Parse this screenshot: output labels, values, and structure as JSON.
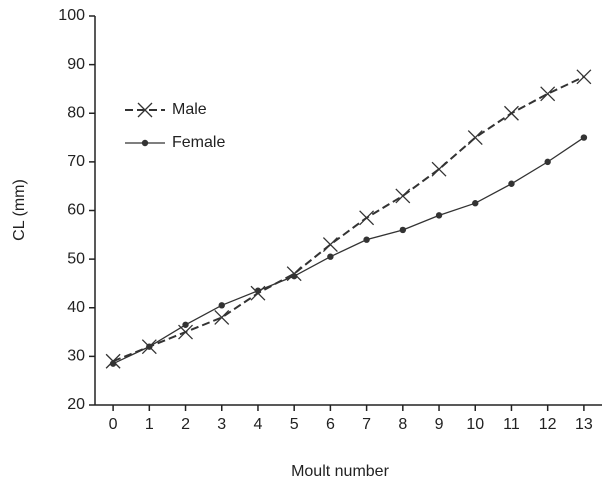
{
  "chart_data": {
    "type": "line",
    "x_label": "Moult number",
    "y_label": "CL (mm)",
    "x": [
      0,
      1,
      2,
      3,
      4,
      5,
      6,
      7,
      8,
      9,
      10,
      11,
      12,
      13
    ],
    "series": [
      {
        "name": "Male",
        "color": "#333333",
        "marker": "x",
        "dash": true,
        "values": [
          29,
          32,
          35,
          38,
          43,
          47,
          53,
          58.5,
          63,
          68.5,
          75,
          80,
          84,
          87.5
        ]
      },
      {
        "name": "Female",
        "color": "#333333",
        "marker": "dot",
        "dash": false,
        "values": [
          28.5,
          32,
          36.5,
          40.5,
          43.5,
          46.5,
          50.5,
          54,
          56,
          59,
          61.5,
          65.5,
          70,
          75
        ]
      }
    ],
    "xlim": [
      -0.5,
      13.5
    ],
    "xticks": [
      0,
      1,
      2,
      3,
      4,
      5,
      6,
      7,
      8,
      9,
      10,
      11,
      12,
      13
    ],
    "ylim": [
      20,
      100
    ],
    "yticks": [
      20,
      30,
      40,
      50,
      60,
      70,
      80,
      90,
      100
    ],
    "grid": false,
    "legend": "upper-left"
  }
}
